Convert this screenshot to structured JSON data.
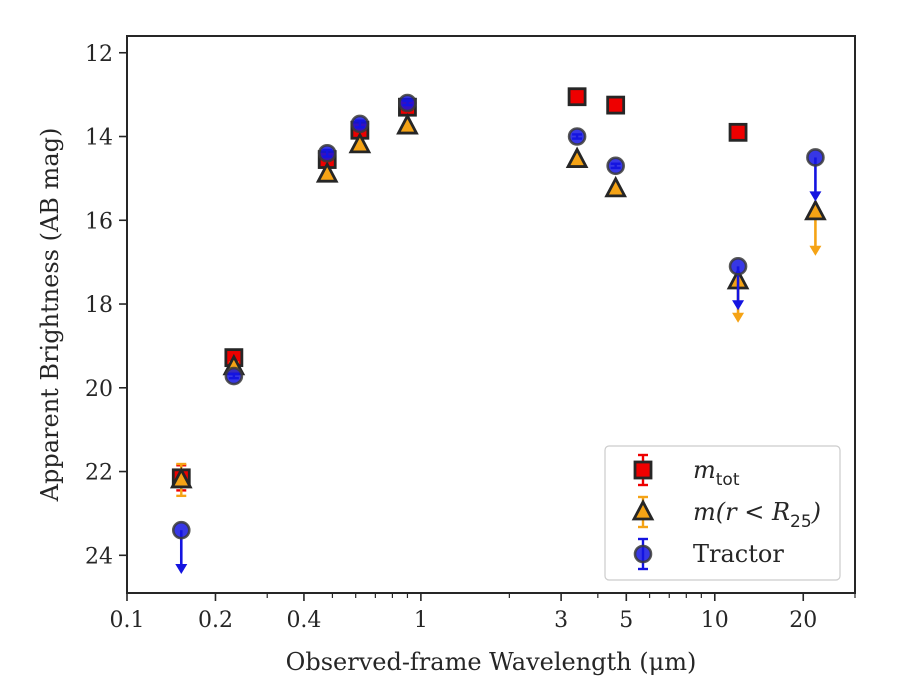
{
  "chart_data": {
    "type": "scatter",
    "title": "",
    "xlabel": "Observed-frame Wavelength (μm)",
    "ylabel": "Apparent Brightness (AB mag)",
    "x_scale": "log",
    "xlim": [
      0.1,
      30
    ],
    "ylim": [
      24.9,
      11.6
    ],
    "y_inverted": true,
    "grid": false,
    "legend_position": "lower-right",
    "x_ticks": [
      {
        "value": 0.1,
        "label": "0.1"
      },
      {
        "value": 0.2,
        "label": "0.2"
      },
      {
        "value": 0.4,
        "label": "0.4"
      },
      {
        "value": 1,
        "label": "1"
      },
      {
        "value": 3,
        "label": "3"
      },
      {
        "value": 5,
        "label": "5"
      },
      {
        "value": 10,
        "label": "10"
      },
      {
        "value": 20,
        "label": "20"
      }
    ],
    "y_ticks": [
      {
        "value": 12,
        "label": "12"
      },
      {
        "value": 14,
        "label": "14"
      },
      {
        "value": 16,
        "label": "16"
      },
      {
        "value": 18,
        "label": "18"
      },
      {
        "value": 20,
        "label": "20"
      },
      {
        "value": 22,
        "label": "22"
      },
      {
        "value": 24,
        "label": "24"
      }
    ],
    "series": [
      {
        "name": "m_tot",
        "legend_main": "m",
        "legend_sub": "tot",
        "marker": "square",
        "color": "#ee0000",
        "points": [
          {
            "x": 0.153,
            "y": 22.15,
            "err": 0.3
          },
          {
            "x": 0.231,
            "y": 19.28,
            "err": 0.1
          },
          {
            "x": 0.48,
            "y": 14.55,
            "err": 0.12
          },
          {
            "x": 0.62,
            "y": 13.85,
            "err": 0.12
          },
          {
            "x": 0.9,
            "y": 13.3,
            "err": 0.1
          },
          {
            "x": 3.4,
            "y": 13.05,
            "err": 0.0
          },
          {
            "x": 4.6,
            "y": 13.25,
            "err": 0.0
          },
          {
            "x": 12.0,
            "y": 13.9,
            "err": 0.0
          }
        ]
      },
      {
        "name": "m(r<R25)",
        "legend_main": "m(r < R",
        "legend_sub": "25",
        "legend_tail": ")",
        "marker": "triangle",
        "color": "#f5a315",
        "points": [
          {
            "x": 0.153,
            "y": 22.2,
            "err": 0.38
          },
          {
            "x": 0.231,
            "y": 19.5,
            "err": 0.1
          },
          {
            "x": 0.48,
            "y": 14.9,
            "err": 0.05
          },
          {
            "x": 0.62,
            "y": 14.2,
            "err": 0.05
          },
          {
            "x": 0.9,
            "y": 13.75,
            "err": 0.05
          },
          {
            "x": 3.4,
            "y": 14.55,
            "err": 0.05
          },
          {
            "x": 4.6,
            "y": 15.25,
            "err": 0.05
          },
          {
            "x": 12.0,
            "y": 17.45,
            "upper_limit": true,
            "arrow_to": 18.4
          },
          {
            "x": 22.0,
            "y": 15.8,
            "upper_limit": true,
            "arrow_to": 16.8
          }
        ]
      },
      {
        "name": "Tractor",
        "legend_main": "Tractor",
        "marker": "circle",
        "color": "#1414e0",
        "points": [
          {
            "x": 0.153,
            "y": 23.4,
            "upper_limit": true,
            "arrow_to": 24.4
          },
          {
            "x": 0.231,
            "y": 19.72,
            "err": 0.05
          },
          {
            "x": 0.48,
            "y": 14.4,
            "err": 0.08
          },
          {
            "x": 0.62,
            "y": 13.7,
            "err": 0.08
          },
          {
            "x": 0.9,
            "y": 13.2,
            "err": 0.05
          },
          {
            "x": 3.4,
            "y": 14.0,
            "err": 0.05
          },
          {
            "x": 4.6,
            "y": 14.7,
            "err": 0.05
          },
          {
            "x": 12.0,
            "y": 17.1,
            "upper_limit": true,
            "arrow_to": 18.1
          },
          {
            "x": 22.0,
            "y": 14.5,
            "upper_limit": true,
            "arrow_to": 15.5
          }
        ]
      }
    ]
  }
}
